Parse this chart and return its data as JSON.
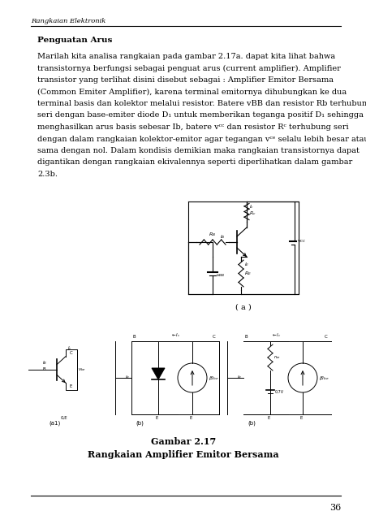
{
  "page_title": "Rangkaian Elektronik",
  "section_title": "Penguatan Arus",
  "body_lines": [
    "Marilah kita analisa rangkaian pada gambar 2.17a. dapat kita lihat bahwa",
    "transistornya berfungsi sebagai penguat arus (current amplifier). Amplifier",
    "transistor yang terlihat disini disebut sebagai : Amplifier Emitor Bersama",
    "(Common Emiter Amplifier), karena terminal emitornya dihubungkan ke dua",
    "terminal basis dan kolektor melalui resistor. Batere vBB dan resistor Rb terhubung",
    "seri dengan base-emiter diode D₁ untuk memberikan teganga positif D₁ sehingga",
    "menghasilkan arus basis sebesar Ib, batere vᶜᶜ dan resistor Rᶜ terhubung seri",
    "dengan dalam rangkaian kolektor-emitor agar tegangan vᶜᵉ selalu lebih besar atau",
    "sama dengan nol. Dalam kondisis demikian maka rangkaian transistornya dapat",
    "digantikan dengan rangkaian ekivalennya seperti diperlihatkan dalam gambar",
    "2.3b."
  ],
  "figure_label_a": "( a )",
  "figure_caption_bold": "Gambar 2.17",
  "figure_caption_normal": "Rangkaian Amplifier Emitor Bersama",
  "page_number": "36",
  "bg_color": "#ffffff",
  "text_color": "#000000",
  "line_color": "#000000"
}
